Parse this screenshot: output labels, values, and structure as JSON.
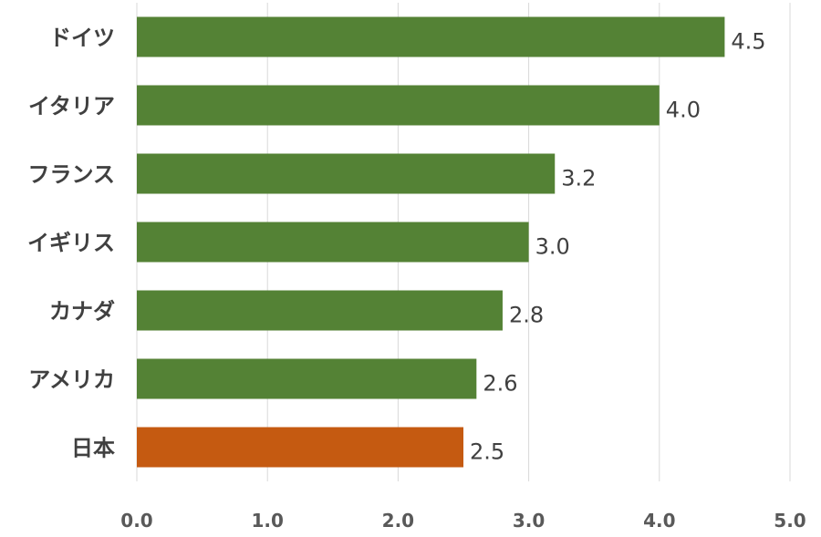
{
  "chart_data": {
    "type": "bar",
    "orientation": "horizontal",
    "title": "",
    "xlabel": "",
    "ylabel": "",
    "categories": [
      "ドイツ",
      "イタリア",
      "フランス",
      "イギリス",
      "カナダ",
      "アメリカ",
      "日本"
    ],
    "values": [
      4.5,
      4.0,
      3.2,
      3.0,
      2.8,
      2.6,
      2.5
    ],
    "data_labels": [
      "4.5",
      "4.0",
      "3.2",
      "3.0",
      "2.8",
      "2.6",
      "2.5"
    ],
    "bar_colors": [
      "#548235",
      "#548235",
      "#548235",
      "#548235",
      "#548235",
      "#548235",
      "#C55A11"
    ],
    "xlim": [
      0,
      5.0
    ],
    "xticks": [
      "0.0",
      "1.0",
      "2.0",
      "3.0",
      "4.0",
      "5.0"
    ],
    "grid": true,
    "legend": "none"
  }
}
